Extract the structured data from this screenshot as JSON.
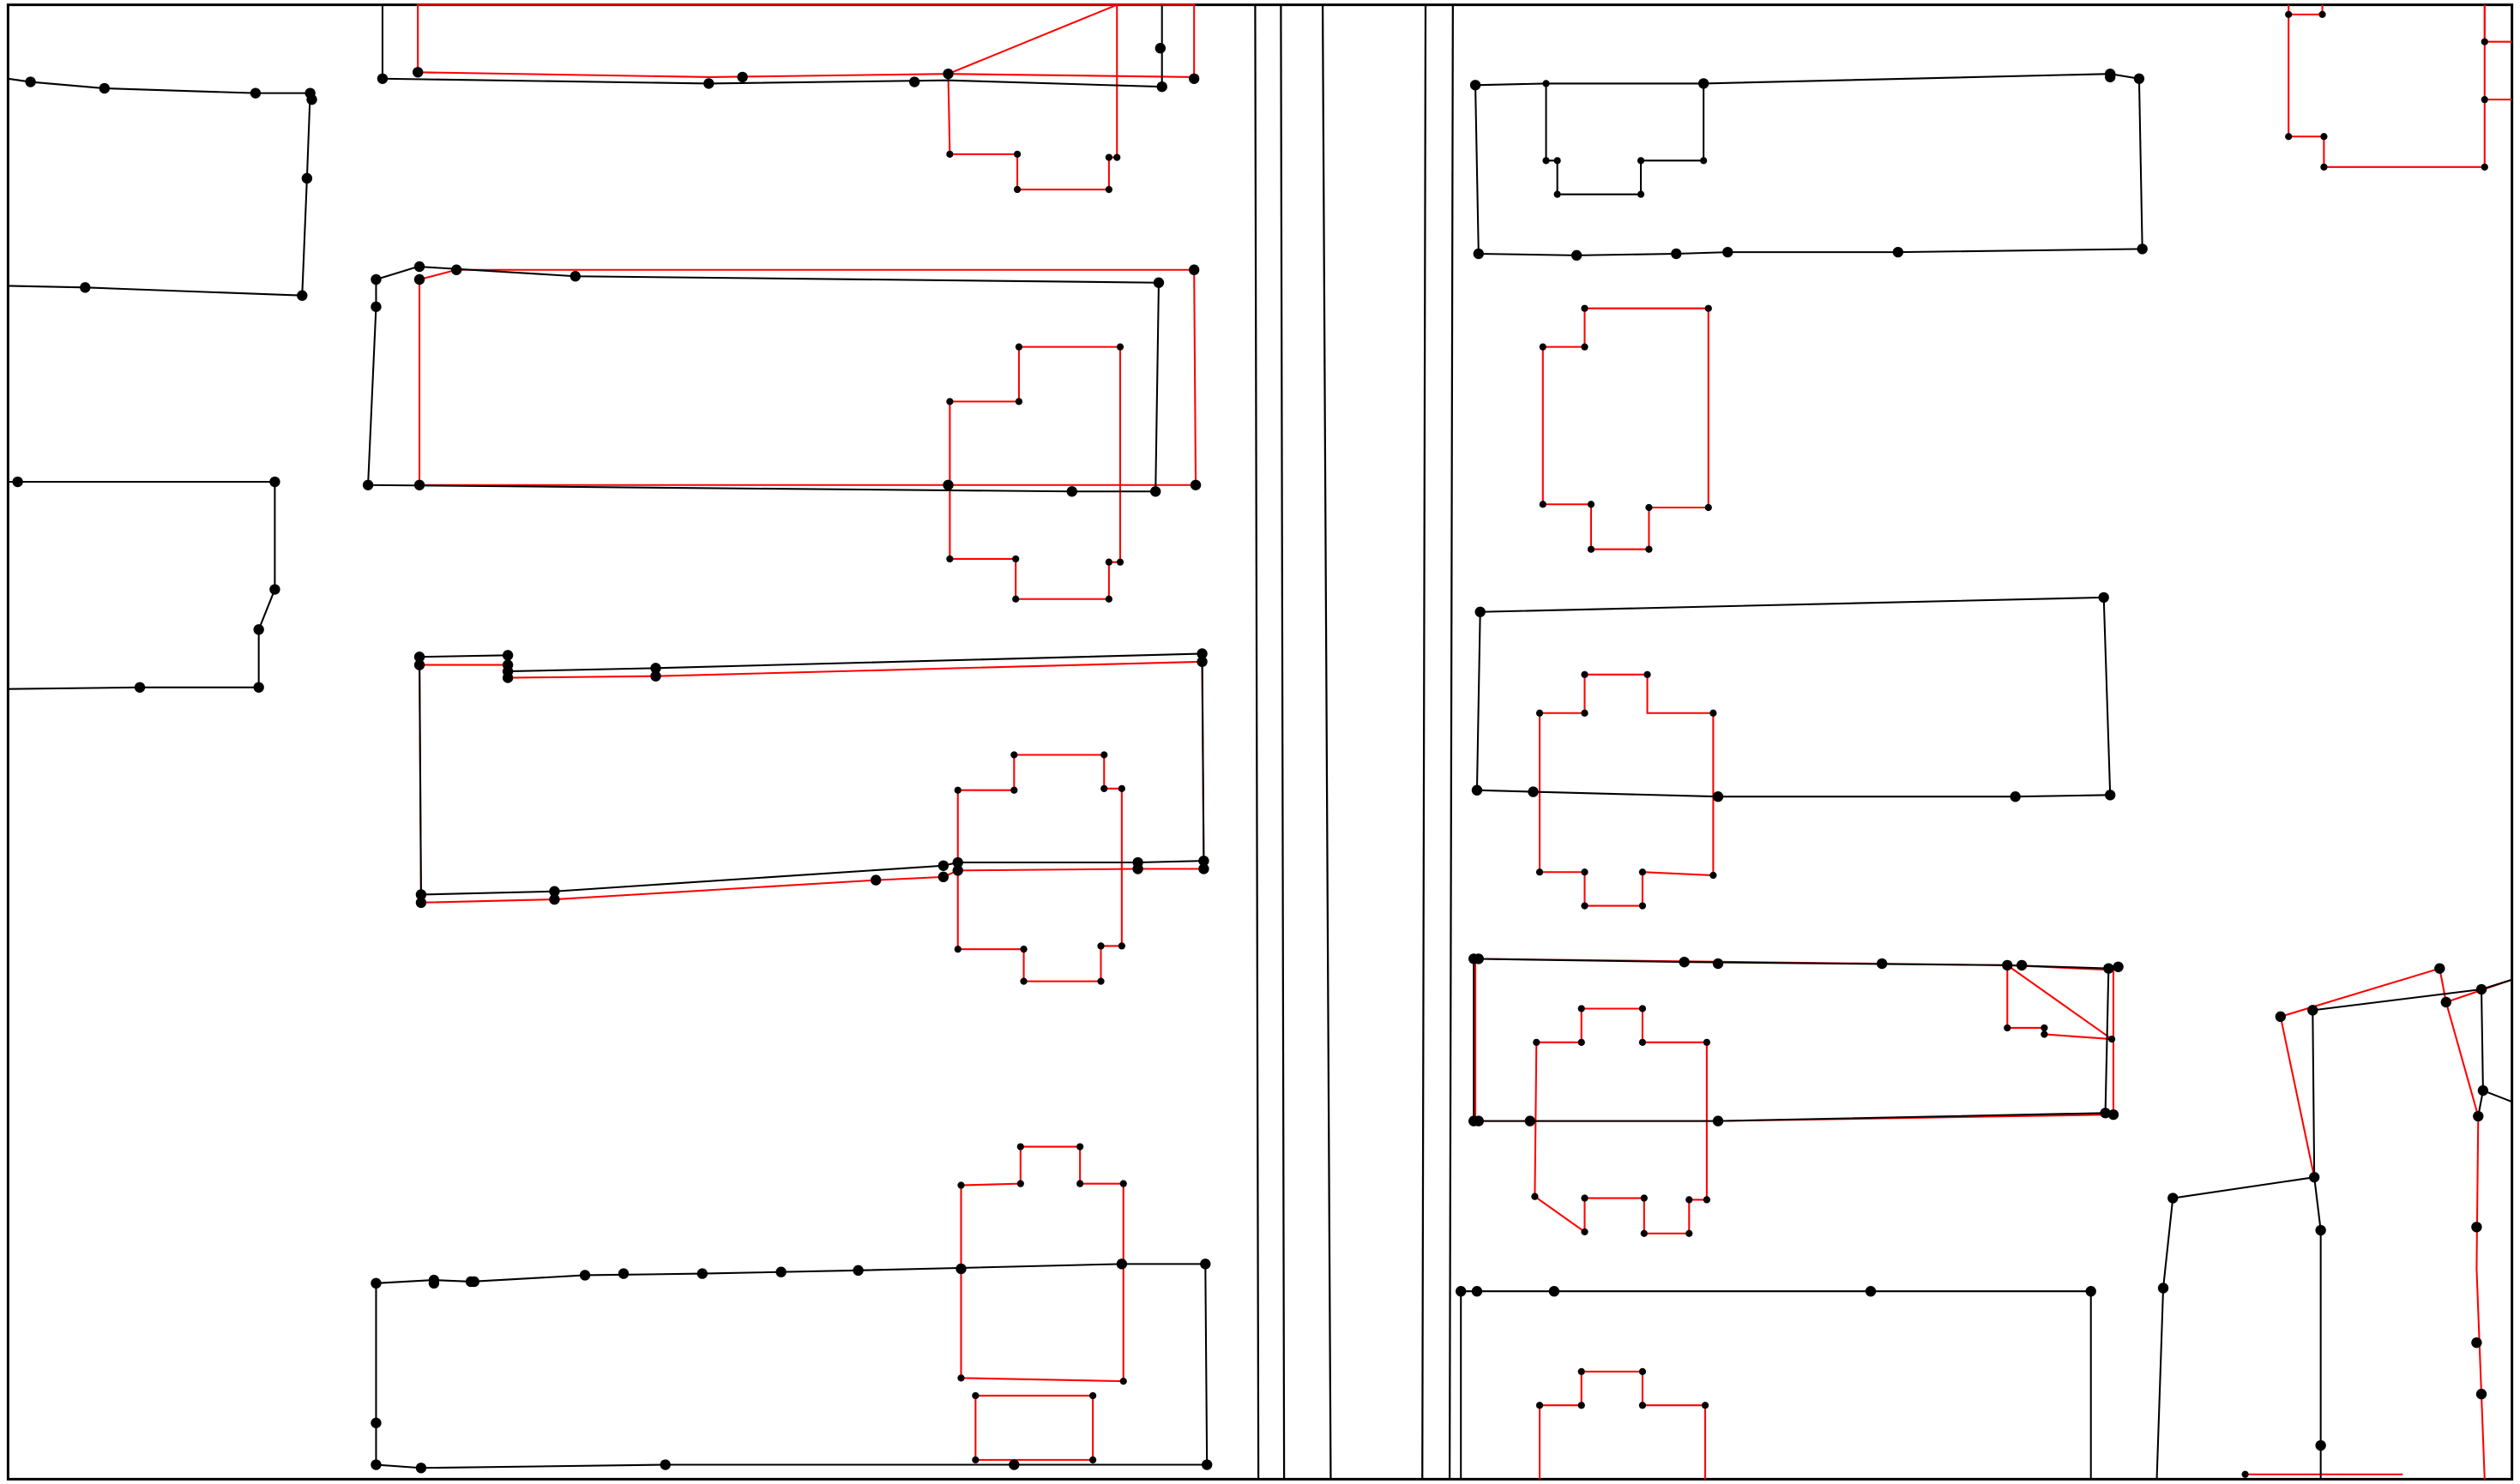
{
  "map": {
    "background": "#ffffff",
    "frame_color": "#000000",
    "line_colors": {
      "black": "#000000",
      "red": "#ff0000"
    },
    "vertex_color": "#000000",
    "legend": [],
    "labels": []
  }
}
